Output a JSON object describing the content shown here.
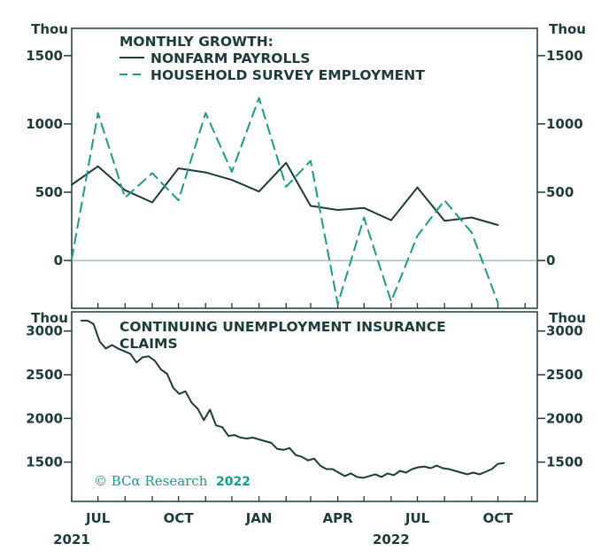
{
  "chart_data": [
    {
      "type": "line",
      "title_lines": [
        "MONTHLY GROWTH:",
        "NONFARM PAYROLLS",
        "HOUSEHOLD SURVEY EMPLOYMENT"
      ],
      "unit_left": "Thou",
      "unit_right": "Thou",
      "ylim": [
        -350,
        1700
      ],
      "yticks": [
        0,
        500,
        1000,
        1500
      ],
      "ytick_labels": [
        "0",
        "500",
        "1000",
        "1500"
      ],
      "zero_line": true,
      "legend_placement": "top-left",
      "series": [
        {
          "name": "NONFARM PAYROLLS",
          "style": "solid",
          "color": "#1d3b3a",
          "points": [
            [
              "2021-06-01",
              555
            ],
            [
              "2021-07-01",
              690
            ],
            [
              "2021-08-01",
              515
            ],
            [
              "2021-09-01",
              425
            ],
            [
              "2021-10-01",
              675
            ],
            [
              "2021-11-01",
              645
            ],
            [
              "2021-12-01",
              590
            ],
            [
              "2022-01-01",
              505
            ],
            [
              "2022-02-01",
              715
            ],
            [
              "2022-03-01",
              400
            ],
            [
              "2022-04-01",
              370
            ],
            [
              "2022-05-01",
              385
            ],
            [
              "2022-06-01",
              295
            ],
            [
              "2022-07-01",
              535
            ],
            [
              "2022-08-01",
              290
            ],
            [
              "2022-09-01",
              315
            ],
            [
              "2022-10-01",
              260
            ]
          ]
        },
        {
          "name": "HOUSEHOLD SURVEY EMPLOYMENT",
          "style": "dashed",
          "color": "#1a9e80",
          "points": [
            [
              "2021-06-01",
              10
            ],
            [
              "2021-07-01",
              1080
            ],
            [
              "2021-08-01",
              460
            ],
            [
              "2021-09-01",
              640
            ],
            [
              "2021-10-01",
              440
            ],
            [
              "2021-11-01",
              1080
            ],
            [
              "2021-12-01",
              650
            ],
            [
              "2022-01-01",
              1190
            ],
            [
              "2022-02-01",
              540
            ],
            [
              "2022-03-01",
              730
            ],
            [
              "2022-04-01",
              -320
            ],
            [
              "2022-05-01",
              315
            ],
            [
              "2022-06-01",
              -300
            ],
            [
              "2022-07-01",
              180
            ],
            [
              "2022-08-01",
              440
            ],
            [
              "2022-09-01",
              205
            ],
            [
              "2022-10-01",
              -310
            ]
          ]
        }
      ]
    },
    {
      "type": "line",
      "title_lines": [
        "CONTINUING UNEMPLOYMENT INSURANCE",
        "CLAIMS"
      ],
      "unit_left": "Thou",
      "unit_right": "Thou",
      "ylim": [
        1050,
        3220
      ],
      "yticks": [
        1500,
        2000,
        2500,
        3000
      ],
      "ytick_labels": [
        "1500",
        "2000",
        "2500",
        "3000"
      ],
      "series": [
        {
          "style": "solid",
          "color": "#1d3b3a",
          "points": [
            [
              "2021-06-12",
              3120
            ],
            [
              "2021-06-19",
              3120
            ],
            [
              "2021-06-26",
              3080
            ],
            [
              "2021-07-03",
              2880
            ],
            [
              "2021-07-10",
              2800
            ],
            [
              "2021-07-17",
              2840
            ],
            [
              "2021-07-24",
              2800
            ],
            [
              "2021-07-31",
              2770
            ],
            [
              "2021-08-07",
              2740
            ],
            [
              "2021-08-14",
              2640
            ],
            [
              "2021-08-21",
              2700
            ],
            [
              "2021-08-28",
              2710
            ],
            [
              "2021-09-04",
              2660
            ],
            [
              "2021-09-11",
              2560
            ],
            [
              "2021-09-18",
              2510
            ],
            [
              "2021-09-25",
              2350
            ],
            [
              "2021-10-02",
              2280
            ],
            [
              "2021-10-09",
              2310
            ],
            [
              "2021-10-16",
              2180
            ],
            [
              "2021-10-23",
              2110
            ],
            [
              "2021-10-30",
              1980
            ],
            [
              "2021-11-06",
              2100
            ],
            [
              "2021-11-13",
              1920
            ],
            [
              "2021-11-20",
              1900
            ],
            [
              "2021-11-27",
              1800
            ],
            [
              "2021-12-04",
              1810
            ],
            [
              "2021-12-11",
              1780
            ],
            [
              "2021-12-18",
              1770
            ],
            [
              "2021-12-25",
              1780
            ],
            [
              "2022-01-01",
              1760
            ],
            [
              "2022-01-08",
              1740
            ],
            [
              "2022-01-15",
              1720
            ],
            [
              "2022-01-22",
              1650
            ],
            [
              "2022-01-29",
              1640
            ],
            [
              "2022-02-05",
              1660
            ],
            [
              "2022-02-12",
              1580
            ],
            [
              "2022-02-19",
              1560
            ],
            [
              "2022-02-26",
              1520
            ],
            [
              "2022-03-05",
              1540
            ],
            [
              "2022-03-12",
              1460
            ],
            [
              "2022-03-19",
              1420
            ],
            [
              "2022-03-26",
              1420
            ],
            [
              "2022-04-02",
              1380
            ],
            [
              "2022-04-09",
              1340
            ],
            [
              "2022-04-16",
              1370
            ],
            [
              "2022-04-23",
              1330
            ],
            [
              "2022-04-30",
              1320
            ],
            [
              "2022-05-07",
              1340
            ],
            [
              "2022-05-14",
              1360
            ],
            [
              "2022-05-21",
              1330
            ],
            [
              "2022-05-28",
              1370
            ],
            [
              "2022-06-04",
              1350
            ],
            [
              "2022-06-11",
              1400
            ],
            [
              "2022-06-18",
              1380
            ],
            [
              "2022-06-25",
              1420
            ],
            [
              "2022-07-02",
              1440
            ],
            [
              "2022-07-09",
              1450
            ],
            [
              "2022-07-16",
              1430
            ],
            [
              "2022-07-23",
              1460
            ],
            [
              "2022-07-30",
              1430
            ],
            [
              "2022-08-06",
              1420
            ],
            [
              "2022-08-13",
              1400
            ],
            [
              "2022-08-20",
              1380
            ],
            [
              "2022-08-27",
              1360
            ],
            [
              "2022-09-03",
              1380
            ],
            [
              "2022-09-10",
              1360
            ],
            [
              "2022-09-17",
              1390
            ],
            [
              "2022-09-24",
              1420
            ],
            [
              "2022-10-01",
              1480
            ],
            [
              "2022-10-08",
              1490
            ]
          ]
        }
      ]
    }
  ],
  "xaxis": {
    "range": [
      "2021-06-01",
      "2022-11-15"
    ],
    "ticks": [
      {
        "date": "2021-07-01",
        "label": "JUL"
      },
      {
        "date": "2021-10-01",
        "label": "OCT"
      },
      {
        "date": "2022-01-01",
        "label": "JAN"
      },
      {
        "date": "2022-04-01",
        "label": "APR"
      },
      {
        "date": "2022-07-01",
        "label": "JUL"
      },
      {
        "date": "2022-10-01",
        "label": "OCT"
      }
    ],
    "year_labels": [
      {
        "date": "2021-06-01",
        "label": "2021"
      },
      {
        "date": "2022-06-01",
        "label": "2022"
      }
    ]
  },
  "brand": {
    "text": "© BCα Research",
    "year": "2022"
  },
  "colors": {
    "axis": "#1d3b3a",
    "zero_line": "#8fa3a2",
    "accent": "#1a9e80"
  }
}
